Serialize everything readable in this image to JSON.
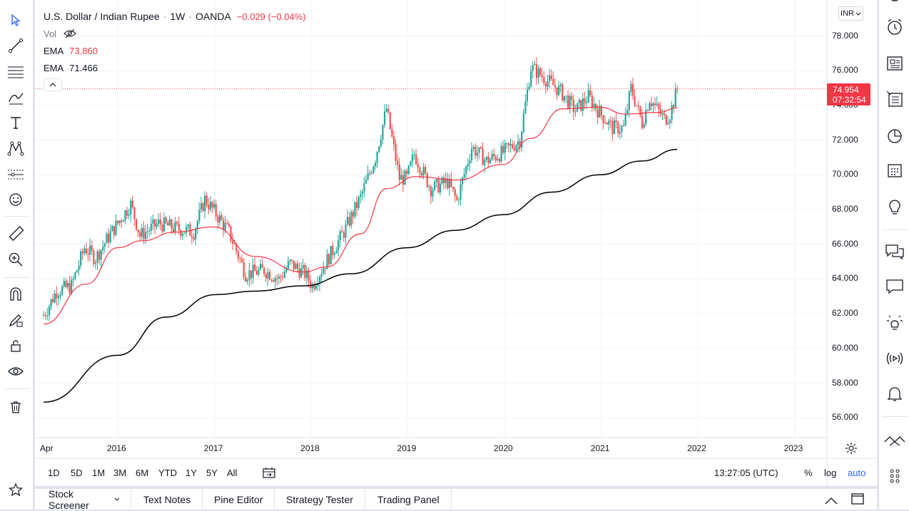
{
  "legend": {
    "symbol": "U.S. Dollar / Indian Rupee",
    "interval": "1W",
    "exchange": "OANDA",
    "change": "−0.029 (−0.04%)",
    "vol_label": "Vol",
    "ema1_label": "EMA",
    "ema1_value": "73.860",
    "ema2_label": "EMA",
    "ema2_value": "71.466"
  },
  "currency_button": "INR",
  "price_label": {
    "value": "74.954",
    "countdown": "07:32:54"
  },
  "time_ranges": [
    "1D",
    "5D",
    "1M",
    "3M",
    "6M",
    "YTD",
    "1Y",
    "5Y",
    "All"
  ],
  "clock": "13:27:05 (UTC)",
  "scale_opts": {
    "percent": "%",
    "log": "log",
    "auto": "auto"
  },
  "bottom_tabs": [
    "Stock Screener",
    "Text Notes",
    "Pine Editor",
    "Strategy Tester",
    "Trading Panel"
  ],
  "colors": {
    "up": "#26a69a",
    "down": "#ef5350",
    "ema_fast": "#f23645",
    "ema_slow": "#000000",
    "accent": "#2962ff"
  },
  "chart_data": {
    "type": "candlestick",
    "title": "U.S. Dollar / Indian Rupee · 1W · OANDA",
    "y_ticks": [
      "78.000",
      "76.000",
      "74.000",
      "72.000",
      "70.000",
      "68.000",
      "66.000",
      "64.000",
      "62.000",
      "60.000",
      "58.000",
      "56.000"
    ],
    "x_ticks": [
      "Apr",
      "2016",
      "2017",
      "2018",
      "2019",
      "2020",
      "2021",
      "2022",
      "2023"
    ],
    "ylim": [
      55.0,
      79.5
    ],
    "last_price": 74.954,
    "close_path": [
      [
        "2015-03-27",
        61.9
      ],
      [
        "2015-05-15",
        63.3
      ],
      [
        "2015-07-10",
        63.6
      ],
      [
        "2015-08-28",
        65.8
      ],
      [
        "2015-10-09",
        65.2
      ],
      [
        "2015-12-04",
        66.6
      ],
      [
        "2016-02-19",
        68.3
      ],
      [
        "2016-03-25",
        66.5
      ],
      [
        "2016-06-03",
        67.2
      ],
      [
        "2016-08-12",
        66.9
      ],
      [
        "2016-10-14",
        66.7
      ],
      [
        "2016-11-25",
        68.6
      ],
      [
        "2016-12-30",
        67.9
      ],
      [
        "2017-02-24",
        66.7
      ],
      [
        "2017-04-28",
        64.3
      ],
      [
        "2017-07-07",
        64.5
      ],
      [
        "2017-09-01",
        64.0
      ],
      [
        "2017-10-13",
        64.9
      ],
      [
        "2017-12-08",
        64.3
      ],
      [
        "2018-01-05",
        63.6
      ],
      [
        "2018-03-02",
        65.1
      ],
      [
        "2018-05-04",
        66.7
      ],
      [
        "2018-07-06",
        68.7
      ],
      [
        "2018-08-31",
        71.0
      ],
      [
        "2018-10-12",
        73.8
      ],
      [
        "2018-11-30",
        69.8
      ],
      [
        "2018-12-28",
        69.8
      ],
      [
        "2019-01-25",
        71.2
      ],
      [
        "2019-03-29",
        69.2
      ],
      [
        "2019-05-31",
        69.6
      ],
      [
        "2019-07-05",
        68.5
      ],
      [
        "2019-08-30",
        71.6
      ],
      [
        "2019-10-25",
        70.8
      ],
      [
        "2019-12-27",
        71.3
      ],
      [
        "2020-02-28",
        72.0
      ],
      [
        "2020-04-10",
        76.2
      ],
      [
        "2020-05-29",
        75.6
      ],
      [
        "2020-07-31",
        74.8
      ],
      [
        "2020-09-25",
        73.7
      ],
      [
        "2020-11-13",
        74.5
      ],
      [
        "2020-12-25",
        73.6
      ],
      [
        "2021-02-12",
        72.7
      ],
      [
        "2021-03-26",
        72.7
      ],
      [
        "2021-04-23",
        75.0
      ],
      [
        "2021-06-04",
        73.0
      ],
      [
        "2021-07-02",
        74.4
      ],
      [
        "2021-08-27",
        73.2
      ],
      [
        "2021-09-17",
        73.5
      ],
      [
        "2021-10-15",
        74.95
      ]
    ],
    "ema_fast": [
      [
        "2015-03-27",
        61.4
      ],
      [
        "2015-09-04",
        63.7
      ],
      [
        "2016-01-01",
        65.8
      ],
      [
        "2016-04-01",
        66.2
      ],
      [
        "2016-08-05",
        66.7
      ],
      [
        "2016-12-30",
        67.0
      ],
      [
        "2017-06-02",
        65.3
      ],
      [
        "2017-12-01",
        64.4
      ],
      [
        "2018-03-02",
        64.7
      ],
      [
        "2018-07-06",
        66.6
      ],
      [
        "2018-10-12",
        69.2
      ],
      [
        "2019-02-01",
        69.9
      ],
      [
        "2019-07-05",
        69.7
      ],
      [
        "2019-12-27",
        70.6
      ],
      [
        "2020-04-10",
        72.1
      ],
      [
        "2020-08-07",
        73.8
      ],
      [
        "2020-12-25",
        73.9
      ],
      [
        "2021-04-02",
        73.5
      ],
      [
        "2021-08-06",
        73.6
      ],
      [
        "2021-10-15",
        73.86
      ]
    ],
    "ema_slow": [
      [
        "2015-03-27",
        56.9
      ],
      [
        "2016-01-01",
        59.6
      ],
      [
        "2016-07-01",
        61.8
      ],
      [
        "2017-01-06",
        63.1
      ],
      [
        "2017-06-02",
        63.3
      ],
      [
        "2017-12-01",
        63.6
      ],
      [
        "2018-06-01",
        64.3
      ],
      [
        "2018-12-28",
        65.8
      ],
      [
        "2019-06-28",
        66.8
      ],
      [
        "2019-12-27",
        67.7
      ],
      [
        "2020-06-26",
        69.0
      ],
      [
        "2020-12-25",
        70.0
      ],
      [
        "2021-06-04",
        70.8
      ],
      [
        "2021-10-15",
        71.466
      ]
    ]
  }
}
